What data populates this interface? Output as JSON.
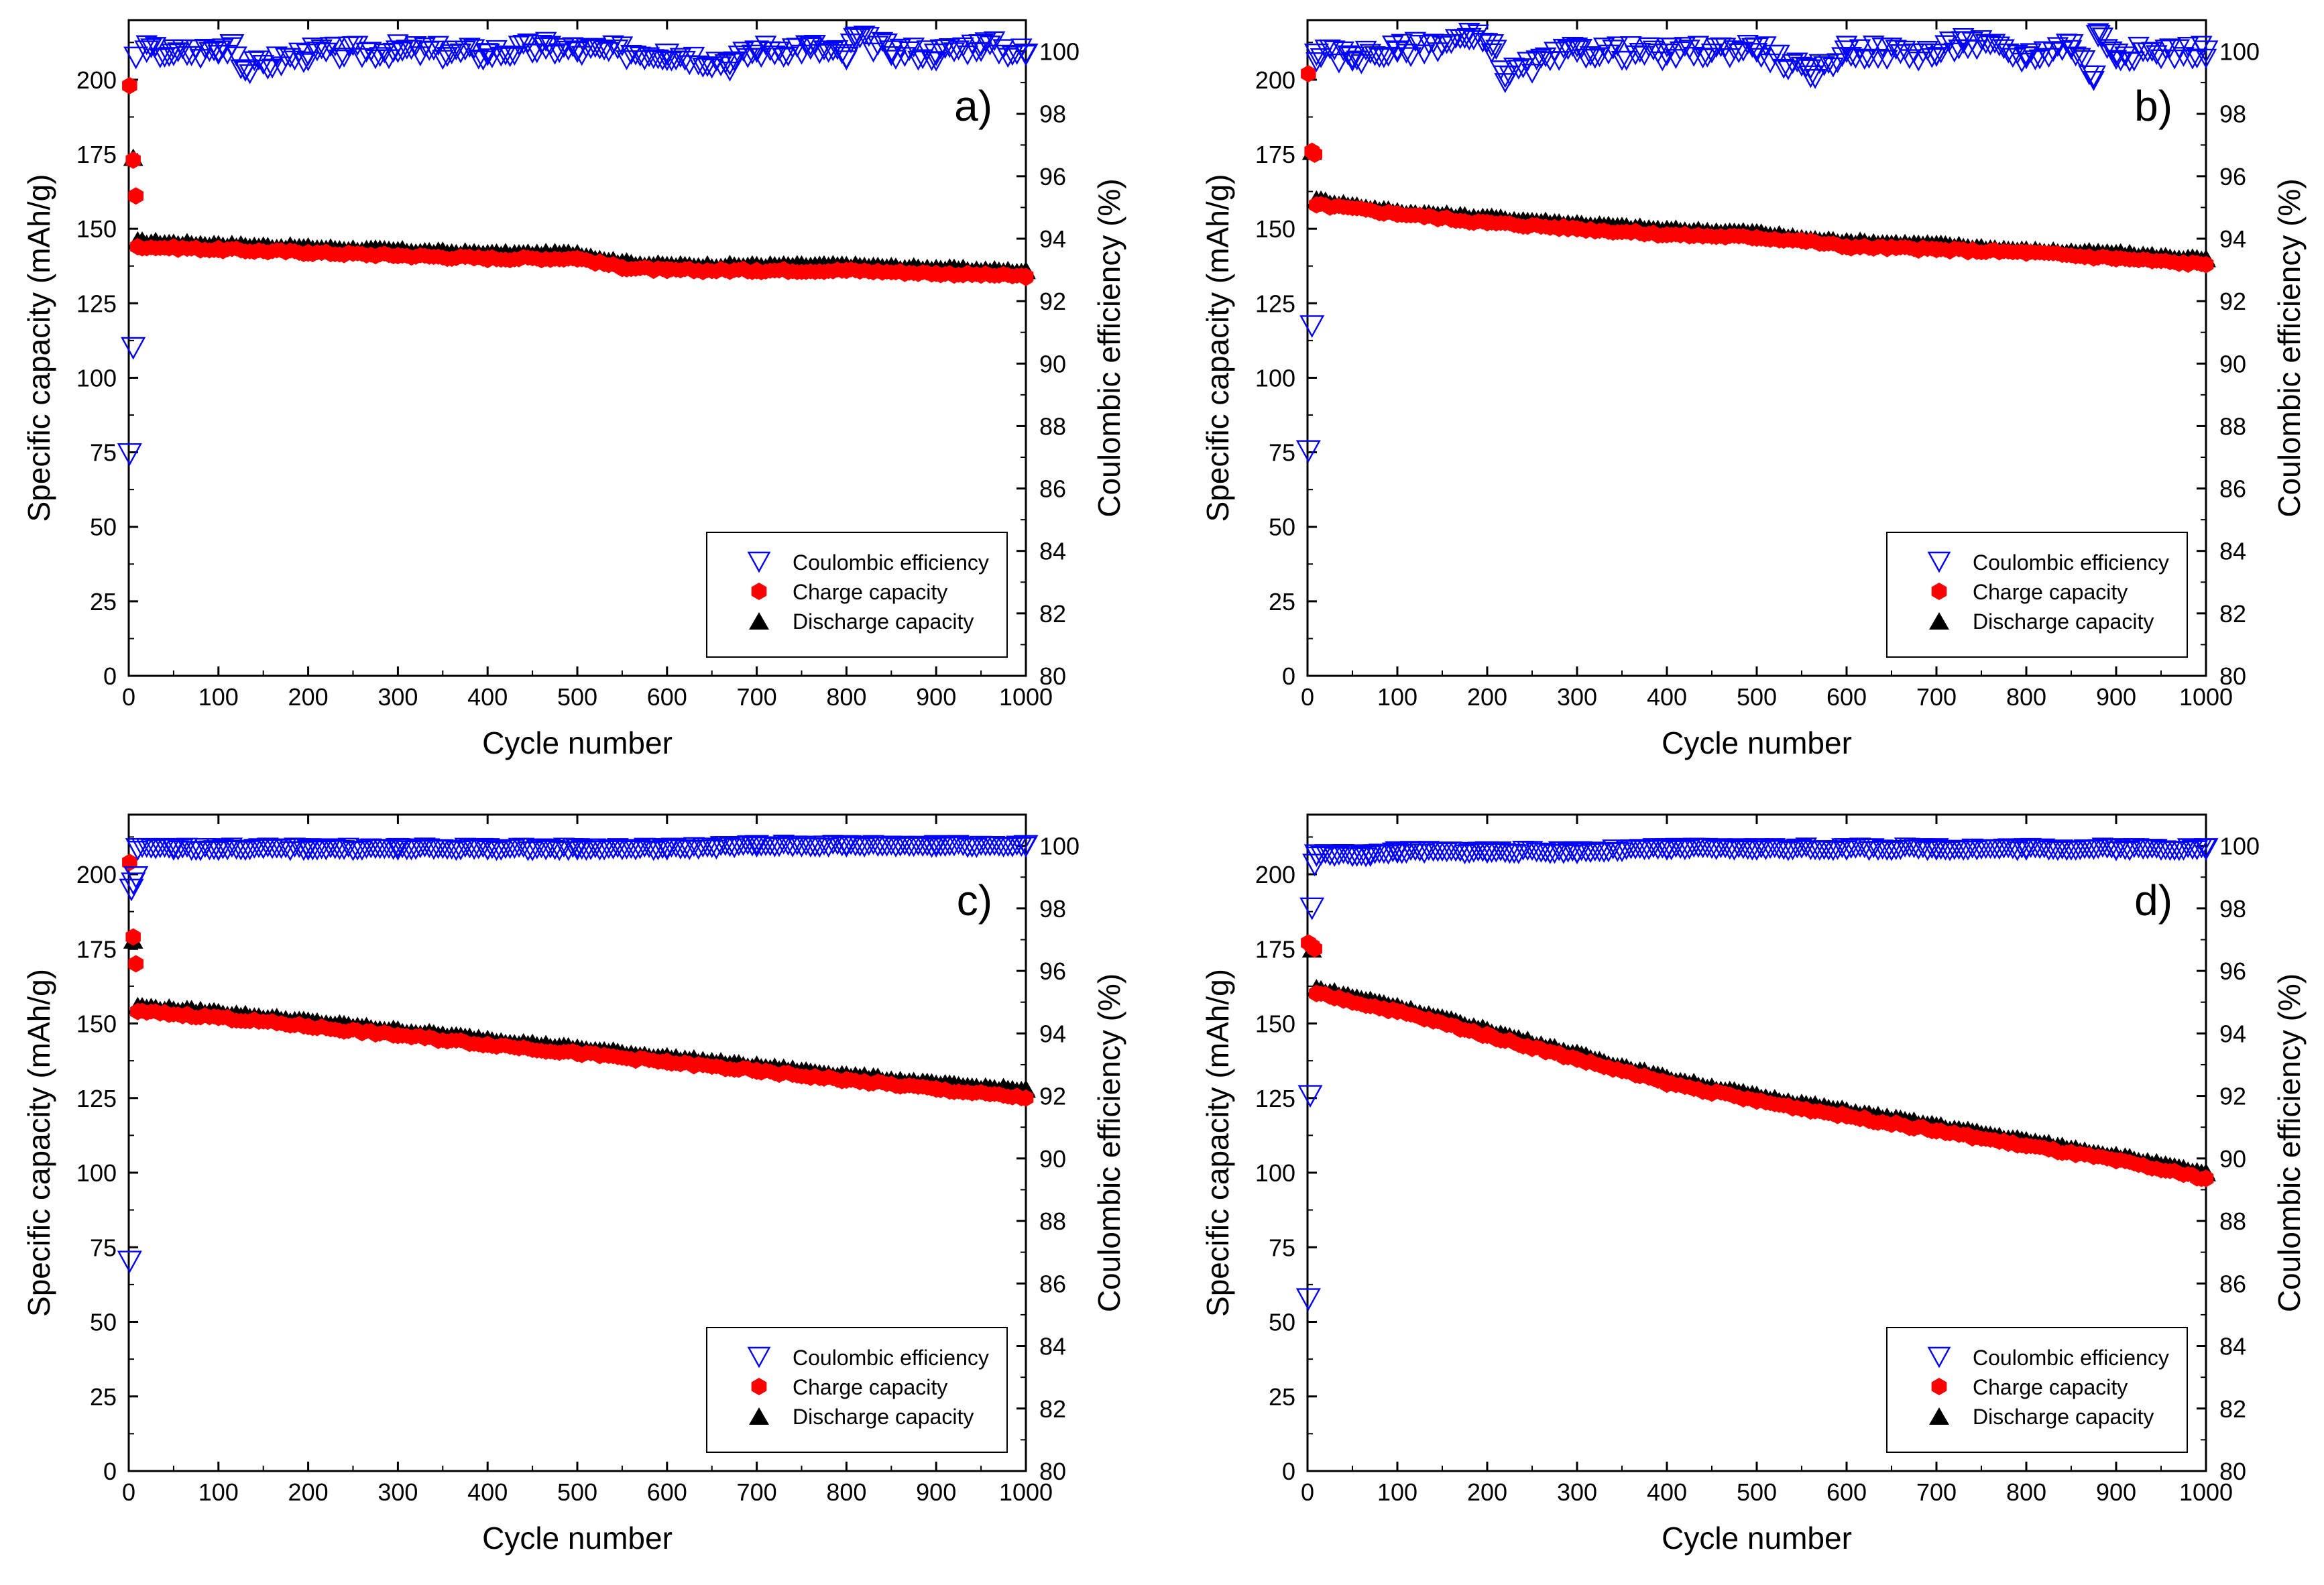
{
  "colors": {
    "coulombic": "#0000ff",
    "charge": "#ff0000",
    "discharge": "#000000",
    "axes": "#000000",
    "background": "#ffffff"
  },
  "chart_data": [
    {
      "type": "scatter",
      "panel_label": "a)",
      "xlabel": "Cycle number",
      "ylabel": "Specific capacity (mAh/g)",
      "y2label": "Coulombic efficiency (%)",
      "xlim": [
        0,
        1000
      ],
      "ylim": [
        0,
        220
      ],
      "y2lim": [
        80,
        101
      ],
      "xticks": [
        0,
        100,
        200,
        300,
        400,
        500,
        600,
        700,
        800,
        900,
        1000
      ],
      "yticks": [
        0,
        25,
        50,
        75,
        100,
        125,
        150,
        175,
        200
      ],
      "y2ticks": [
        80,
        82,
        84,
        86,
        88,
        90,
        92,
        94,
        96,
        98,
        100
      ],
      "grid": false,
      "legend_position": "lower-right",
      "series": [
        {
          "name": "Coulombic efficiency",
          "marker": "down-triangle-open",
          "color": "#0000ff",
          "axis": "right",
          "x": [
            1,
            5,
            8,
            20,
            50,
            100,
            115,
            130,
            200,
            300,
            400,
            465,
            500,
            600,
            670,
            700,
            760,
            800,
            810,
            850,
            900,
            950,
            1000
          ],
          "y": [
            87.1,
            90.5,
            99.8,
            100.0,
            99.9,
            100.0,
            100.2,
            99.4,
            99.9,
            100.0,
            99.9,
            100.1,
            100.0,
            99.9,
            99.6,
            100.0,
            100.1,
            99.8,
            100.4,
            100.0,
            99.9,
            100.2,
            99.9
          ]
        },
        {
          "name": "Charge capacity",
          "marker": "hexagon-filled",
          "color": "#ff0000",
          "axis": "left",
          "x": [
            1,
            5,
            8,
            10,
            100,
            200,
            300,
            400,
            500,
            550,
            600,
            700,
            800,
            900,
            1000
          ],
          "y": [
            198,
            173,
            161,
            144,
            143,
            142,
            141,
            140,
            140,
            137,
            136,
            136,
            136,
            135,
            134
          ]
        },
        {
          "name": "Discharge capacity",
          "marker": "up-triangle-filled",
          "color": "#000000",
          "axis": "left",
          "x": [
            5,
            10,
            100,
            200,
            300,
            400,
            500,
            550,
            600,
            700,
            800,
            900,
            1000
          ],
          "y": [
            174,
            146,
            145,
            144,
            143,
            142,
            142,
            139,
            138,
            138,
            138,
            137,
            136
          ]
        }
      ]
    },
    {
      "type": "scatter",
      "panel_label": "b)",
      "xlabel": "Cycle number",
      "ylabel": "Specific capacity (mAh/g)",
      "y2label": "Coulombic efficiency (%)",
      "xlim": [
        0,
        1000
      ],
      "ylim": [
        0,
        220
      ],
      "y2lim": [
        80,
        101
      ],
      "xticks": [
        0,
        100,
        200,
        300,
        400,
        500,
        600,
        700,
        800,
        900,
        1000
      ],
      "yticks": [
        0,
        25,
        50,
        75,
        100,
        125,
        150,
        175,
        200
      ],
      "y2ticks": [
        80,
        82,
        84,
        86,
        88,
        90,
        92,
        94,
        96,
        98,
        100
      ],
      "grid": false,
      "legend_position": "lower-right",
      "series": [
        {
          "name": "Coulombic efficiency",
          "marker": "down-triangle-open",
          "color": "#0000ff",
          "axis": "right",
          "x": [
            1,
            5,
            10,
            50,
            100,
            180,
            205,
            220,
            300,
            400,
            500,
            560,
            600,
            700,
            730,
            800,
            850,
            875,
            880,
            900,
            1000
          ],
          "y": [
            87.2,
            91.2,
            99.9,
            99.8,
            100.0,
            100.4,
            100.2,
            99.2,
            100.0,
            99.9,
            100.1,
            99.2,
            100.0,
            99.9,
            100.3,
            99.8,
            100.2,
            99.2,
            100.5,
            99.9,
            100.0
          ]
        },
        {
          "name": "Charge capacity",
          "marker": "hexagon-filled",
          "color": "#ff0000",
          "axis": "left",
          "x": [
            1,
            5,
            8,
            10,
            100,
            200,
            300,
            400,
            500,
            550,
            600,
            700,
            800,
            900,
            1000
          ],
          "y": [
            202,
            176,
            175,
            158,
            155,
            152,
            150,
            148,
            147,
            146,
            144,
            143,
            142,
            140,
            138
          ]
        },
        {
          "name": "Discharge capacity",
          "marker": "up-triangle-filled",
          "color": "#000000",
          "axis": "left",
          "x": [
            5,
            10,
            100,
            200,
            300,
            400,
            500,
            550,
            600,
            700,
            800,
            900,
            1000
          ],
          "y": [
            176,
            160,
            156,
            154,
            152,
            150,
            149,
            147,
            146,
            145,
            143,
            142,
            140
          ]
        }
      ]
    },
    {
      "type": "scatter",
      "panel_label": "c)",
      "xlabel": "Cycle number",
      "ylabel": "Specific capacity (mAh/g)",
      "y2label": "Coulombic efficiency (%)",
      "xlim": [
        0,
        1000
      ],
      "ylim": [
        0,
        220
      ],
      "y2lim": [
        80,
        101
      ],
      "xticks": [
        0,
        100,
        200,
        300,
        400,
        500,
        600,
        700,
        800,
        900,
        1000
      ],
      "yticks": [
        0,
        25,
        50,
        75,
        100,
        125,
        150,
        175,
        200
      ],
      "y2ticks": [
        80,
        82,
        84,
        86,
        88,
        90,
        92,
        94,
        96,
        98,
        100
      ],
      "grid": false,
      "legend_position": "lower-right",
      "series": [
        {
          "name": "Coulombic efficiency",
          "marker": "down-triangle-open",
          "color": "#0000ff",
          "axis": "right",
          "x": [
            1,
            3,
            5,
            8,
            10,
            50,
            100,
            200,
            300,
            400,
            500,
            600,
            700,
            800,
            900,
            1000
          ],
          "y": [
            86.7,
            98.6,
            98.8,
            99.0,
            99.9,
            99.9,
            99.9,
            99.9,
            99.9,
            99.9,
            99.9,
            99.9,
            100.0,
            100.0,
            100.0,
            100.0
          ]
        },
        {
          "name": "Charge capacity",
          "marker": "hexagon-filled",
          "color": "#ff0000",
          "axis": "left",
          "x": [
            1,
            5,
            8,
            10,
            100,
            200,
            300,
            400,
            500,
            600,
            700,
            800,
            900,
            1000
          ],
          "y": [
            204,
            179,
            170,
            154,
            152,
            149,
            146,
            143,
            140,
            137,
            134,
            131,
            128,
            125
          ]
        },
        {
          "name": "Discharge capacity",
          "marker": "up-triangle-filled",
          "color": "#000000",
          "axis": "left",
          "x": [
            5,
            10,
            100,
            200,
            300,
            400,
            500,
            600,
            700,
            800,
            900,
            1000
          ],
          "y": [
            178,
            156,
            154,
            151,
            148,
            145,
            142,
            139,
            136,
            133,
            130,
            128
          ]
        }
      ]
    },
    {
      "type": "scatter",
      "panel_label": "d)",
      "xlabel": "Cycle number",
      "ylabel": "Specific capacity (mAh/g)",
      "y2label": "Coulombic efficiency (%)",
      "xlim": [
        0,
        1000
      ],
      "ylim": [
        0,
        220
      ],
      "y2lim": [
        80,
        101
      ],
      "xticks": [
        0,
        100,
        200,
        300,
        400,
        500,
        600,
        700,
        800,
        900,
        1000
      ],
      "yticks": [
        0,
        25,
        50,
        75,
        100,
        125,
        150,
        175,
        200
      ],
      "y2ticks": [
        80,
        82,
        84,
        86,
        88,
        90,
        92,
        94,
        96,
        98,
        100
      ],
      "grid": false,
      "legend_position": "lower-right",
      "series": [
        {
          "name": "Coulombic efficiency",
          "marker": "down-triangle-open",
          "color": "#0000ff",
          "axis": "right",
          "x": [
            1,
            3,
            5,
            8,
            10,
            50,
            70,
            100,
            200,
            300,
            400,
            500,
            600,
            700,
            800,
            900,
            1000
          ],
          "y": [
            85.5,
            92.0,
            98.0,
            99.4,
            99.7,
            99.7,
            99.7,
            99.8,
            99.8,
            99.8,
            99.9,
            99.9,
            99.9,
            99.9,
            99.9,
            99.9,
            99.9
          ]
        },
        {
          "name": "Charge capacity",
          "marker": "hexagon-filled",
          "color": "#ff0000",
          "axis": "left",
          "x": [
            1,
            5,
            8,
            10,
            100,
            200,
            300,
            400,
            500,
            600,
            700,
            800,
            900,
            1000
          ],
          "y": [
            177,
            176,
            175,
            160,
            154,
            146,
            138,
            130,
            124,
            119,
            114,
            109,
            104,
            98
          ]
        },
        {
          "name": "Discharge capacity",
          "marker": "up-triangle-filled",
          "color": "#000000",
          "axis": "left",
          "x": [
            5,
            10,
            100,
            200,
            300,
            400,
            500,
            600,
            700,
            800,
            900,
            1000
          ],
          "y": [
            175,
            162,
            156,
            148,
            140,
            132,
            126,
            121,
            116,
            111,
            106,
            100
          ]
        }
      ]
    }
  ]
}
